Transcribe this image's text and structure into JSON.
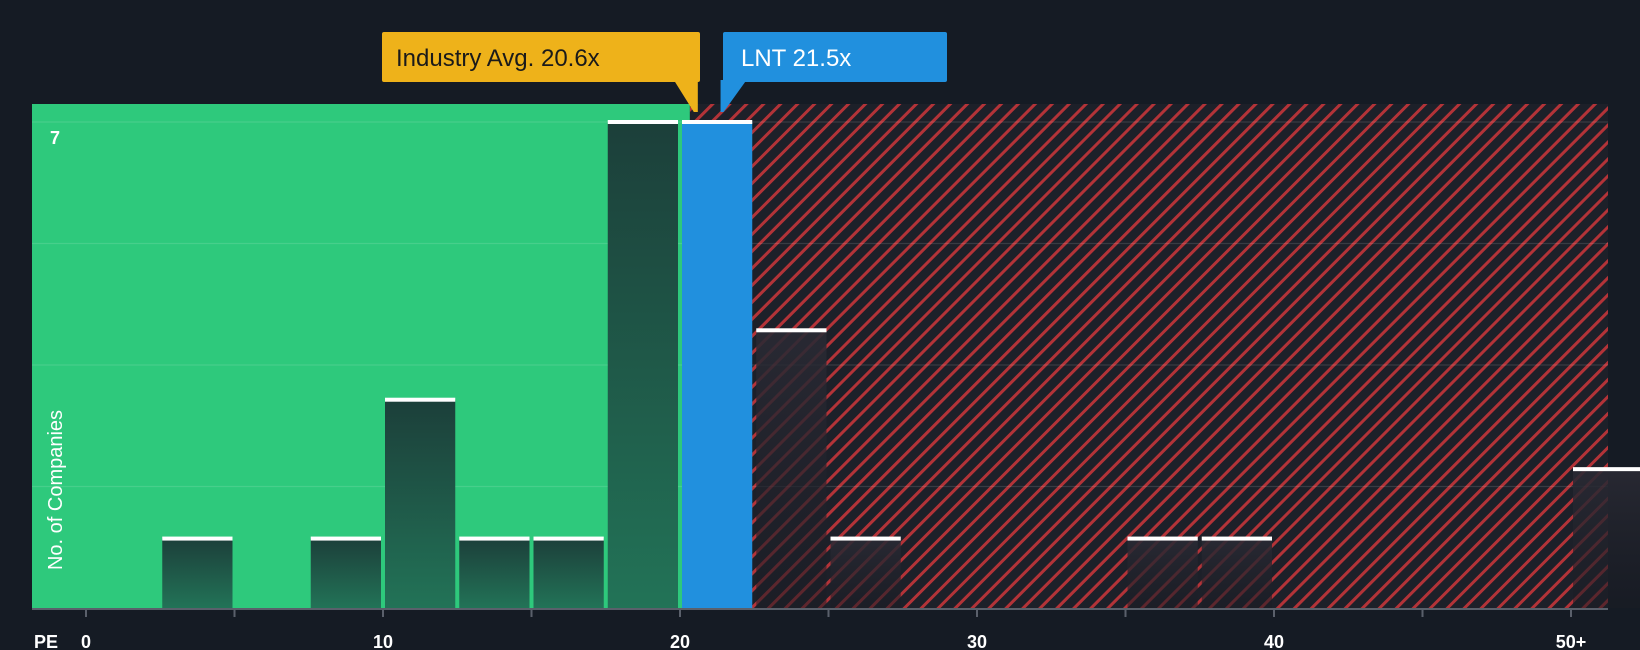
{
  "chart_data": {
    "type": "bar",
    "xlabel": "PE",
    "ylabel": "No. of Companies",
    "x_ticks": [
      "0",
      "10",
      "20",
      "30",
      "40",
      "50+"
    ],
    "y_max_label": "7",
    "ylim": [
      0,
      7
    ],
    "xlim": [
      0,
      51.5
    ],
    "bin_width": 2.5,
    "bars": [
      {
        "start": 2.5,
        "value": 1
      },
      {
        "start": 7.5,
        "value": 1
      },
      {
        "start": 10,
        "value": 3
      },
      {
        "start": 12.5,
        "value": 1
      },
      {
        "start": 15,
        "value": 1
      },
      {
        "start": 17.5,
        "value": 7
      },
      {
        "start": 20,
        "value": 7,
        "highlight": true
      },
      {
        "start": 22.5,
        "value": 4
      },
      {
        "start": 25,
        "value": 1
      },
      {
        "start": 35,
        "value": 1
      },
      {
        "start": 37.5,
        "value": 1
      },
      {
        "start": 50,
        "value": 2
      }
    ],
    "fair_zone_end": 20.6,
    "industry_avg": {
      "label": "Industry Avg. 20.6x",
      "value": 20.6
    },
    "company": {
      "label": "LNT 21.5x",
      "value": 21.5
    },
    "colors": {
      "background": "#151b24",
      "fair_zone": "#2ec97c",
      "overvalued_zone": "#9c2f34",
      "bar_dark": "#1e4a3e",
      "highlight": "#2190de",
      "industry_callout": "#eeb21a",
      "company_callout": "#2190de"
    }
  }
}
